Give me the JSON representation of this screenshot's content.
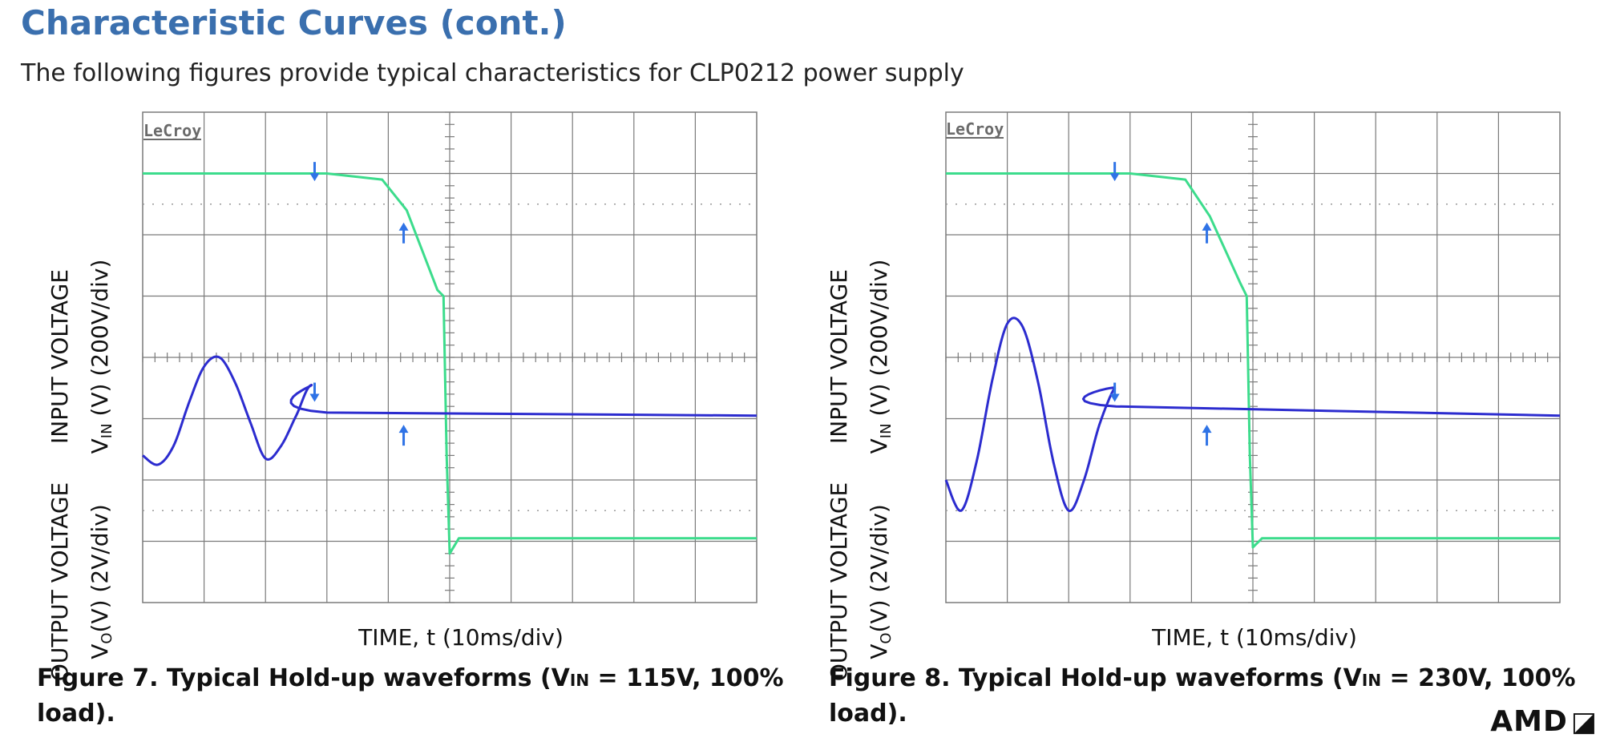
{
  "header": {
    "title": "Characteristic Curves (cont.)",
    "subtitle": "The following figures provide typical characteristics for CLP0212 power supply"
  },
  "figures": [
    {
      "id": "fig1",
      "brand": "LeCroy",
      "ylabel_top_line1": "INPUT VOLTAGE",
      "ylabel_top_line2": "V",
      "ylabel_top_sub": "IN",
      "ylabel_top_rest": " (V) (200V/div)",
      "ylabel_bottom_line1": "OUTPUT VOLTAGE",
      "ylabel_bottom_line2": "V",
      "ylabel_bottom_sub": "O",
      "ylabel_bottom_rest": "(V) (2V/div)",
      "xlabel": "TIME, t (10ms/div)",
      "caption_line1": "Figure 7. Typical Hold-up waveforms (V",
      "caption_sub": "IN",
      "caption_rest1": " = 115V, 100%",
      "caption_line2": "load)."
    },
    {
      "id": "fig2",
      "brand": "LeCroy",
      "ylabel_top_line1": "INPUT VOLTAGE",
      "ylabel_top_line2": "V",
      "ylabel_top_sub": "IN",
      "ylabel_top_rest": " (V) (200V/div)",
      "ylabel_bottom_line1": "OUTPUT VOLTAGE",
      "ylabel_bottom_line2": "V",
      "ylabel_bottom_sub": "O",
      "ylabel_bottom_rest": "(V) (2V/div)",
      "xlabel": "TIME, t (10ms/div)",
      "caption_line1": "Figure 8. Typical Hold-up waveforms (V",
      "caption_sub": "IN",
      "caption_rest1": " = 230V, 100% load).",
      "caption_line2": ""
    }
  ],
  "chart_data": [
    {
      "type": "line",
      "x_divisions": 10,
      "y_divisions": 8,
      "x_unit": "div (10ms/div)",
      "series": [
        {
          "color": "#3cdc8c",
          "x": [
            0,
            2.0,
            3.0,
            3.9,
            4.3,
            4.8,
            4.9,
            4.95,
            5.0,
            5.15,
            10.0
          ],
          "y": [
            7.0,
            7.0,
            7.0,
            6.9,
            6.4,
            5.1,
            5.0,
            2.4,
            0.8,
            1.05,
            1.05
          ]
        },
        {
          "color": "#2c2ccf",
          "kind": "sine_then_hold",
          "x": [
            0,
            0.25,
            0.5,
            0.75,
            1.0,
            1.25,
            1.5,
            1.75,
            2.0,
            2.25,
            2.5,
            2.75,
            3.0,
            10.0
          ],
          "y": [
            2.4,
            2.25,
            2.55,
            3.25,
            3.85,
            4.0,
            3.6,
            2.95,
            2.35,
            2.55,
            3.05,
            3.55,
            3.1,
            3.05
          ]
        }
      ],
      "markers": [
        {
          "color": "#2f73e6",
          "x": 2.8,
          "y": 6.9,
          "dir": "down"
        },
        {
          "color": "#2f73e6",
          "x": 4.25,
          "y": 6.2,
          "dir": "up"
        },
        {
          "color": "#2f73e6",
          "x": 2.8,
          "y": 3.3,
          "dir": "down"
        },
        {
          "color": "#2f73e6",
          "x": 4.25,
          "y": 2.9,
          "dir": "up"
        }
      ]
    },
    {
      "type": "line",
      "x_divisions": 10,
      "y_divisions": 8,
      "x_unit": "div (10ms/div)",
      "series": [
        {
          "color": "#3cdc8c",
          "x": [
            0,
            2.0,
            3.0,
            3.9,
            4.3,
            4.8,
            4.9,
            4.95,
            5.0,
            5.15,
            10.0
          ],
          "y": [
            7.0,
            7.0,
            7.0,
            6.9,
            6.3,
            5.2,
            5.0,
            2.4,
            0.9,
            1.05,
            1.05
          ]
        },
        {
          "color": "#2c2ccf",
          "kind": "sine_then_hold",
          "x": [
            0,
            0.25,
            0.5,
            0.75,
            1.0,
            1.25,
            1.5,
            1.75,
            2.0,
            2.25,
            2.5,
            2.75,
            2.77,
            10.0
          ],
          "y": [
            2.0,
            1.5,
            2.3,
            3.6,
            4.55,
            4.5,
            3.6,
            2.3,
            1.5,
            2.0,
            2.9,
            3.5,
            3.2,
            3.05
          ]
        }
      ],
      "markers": [
        {
          "color": "#2f73e6",
          "x": 2.75,
          "y": 6.9,
          "dir": "down"
        },
        {
          "color": "#2f73e6",
          "x": 4.25,
          "y": 6.2,
          "dir": "up"
        },
        {
          "color": "#2f73e6",
          "x": 2.75,
          "y": 3.3,
          "dir": "down"
        },
        {
          "color": "#2f73e6",
          "x": 4.25,
          "y": 2.9,
          "dir": "up"
        }
      ]
    }
  ],
  "footer": {
    "logo_text": "AMD",
    "logo_mark": "◪"
  },
  "colors": {
    "heading": "#3a6fae",
    "grid": "#7a7a7a",
    "trace_input": "#3cdc8c",
    "trace_output": "#2c2ccf",
    "marker": "#2f73e6"
  }
}
